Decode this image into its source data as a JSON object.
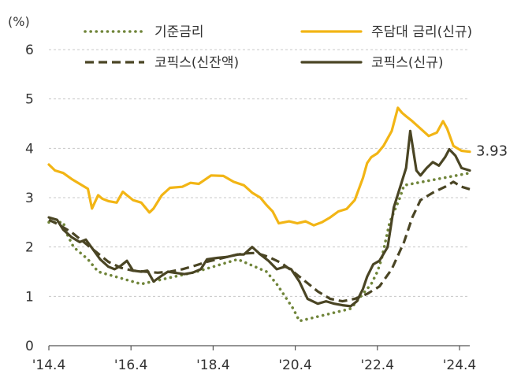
{
  "chart_data": {
    "type": "line",
    "ylabel": "(%)",
    "ylim": [
      0,
      6
    ],
    "yticks": [
      {
        "value": 0,
        "label": "0"
      },
      {
        "value": 1,
        "label": "1"
      },
      {
        "value": 2,
        "label": "2"
      },
      {
        "value": 3,
        "label": "3"
      },
      {
        "value": 4,
        "label": "4"
      },
      {
        "value": 5,
        "label": "5"
      },
      {
        "value": 6,
        "label": "6"
      }
    ],
    "xlim": [
      2014.25,
      2024.5
    ],
    "xticks": [
      {
        "value": 2014.25,
        "label": "'14.4"
      },
      {
        "value": 2016.25,
        "label": "'16.4"
      },
      {
        "value": 2018.25,
        "label": "'18.4"
      },
      {
        "value": 2020.25,
        "label": "'20.4"
      },
      {
        "value": 2022.25,
        "label": "'22.4"
      },
      {
        "value": 2024.25,
        "label": "'24.4"
      }
    ],
    "end_label": "3.93",
    "end_label_series": 1,
    "series": [
      {
        "name": "기준금리",
        "color": "#70853a",
        "style": "dotted",
        "x": [
          2014.25,
          2014.6,
          2014.7,
          2014.85,
          2015.2,
          2015.45,
          2016.5,
          2017.85,
          2018.85,
          2019.55,
          2019.8,
          2020.2,
          2020.35,
          2021.6,
          2021.85,
          2022.1,
          2022.25,
          2022.35,
          2022.55,
          2022.8,
          2022.9,
          2024.5
        ],
        "values": [
          2.5,
          2.5,
          2.25,
          2.0,
          1.75,
          1.5,
          1.25,
          1.5,
          1.75,
          1.5,
          1.25,
          0.75,
          0.5,
          0.75,
          1.0,
          1.25,
          1.5,
          1.75,
          2.5,
          3.0,
          3.25,
          3.5
        ]
      },
      {
        "name": "주담대 금리(신규)",
        "color": "#f2b515",
        "style": "solid",
        "x": [
          2014.25,
          2014.4,
          2014.6,
          2014.8,
          2015.0,
          2015.2,
          2015.3,
          2015.45,
          2015.55,
          2015.7,
          2015.9,
          2016.05,
          2016.15,
          2016.3,
          2016.5,
          2016.7,
          2016.8,
          2017.0,
          2017.2,
          2017.5,
          2017.7,
          2017.9,
          2018.2,
          2018.5,
          2018.75,
          2019.0,
          2019.2,
          2019.4,
          2019.55,
          2019.7,
          2019.85,
          2020.1,
          2020.3,
          2020.5,
          2020.7,
          2020.9,
          2021.1,
          2021.3,
          2021.5,
          2021.7,
          2021.9,
          2022.0,
          2022.1,
          2022.25,
          2022.4,
          2022.6,
          2022.75,
          2022.85,
          2022.95,
          2023.1,
          2023.3,
          2023.5,
          2023.7,
          2023.85,
          2023.95,
          2024.1,
          2024.3,
          2024.5
        ],
        "values": [
          3.67,
          3.55,
          3.5,
          3.38,
          3.28,
          3.18,
          2.78,
          3.05,
          2.98,
          2.93,
          2.9,
          3.12,
          3.05,
          2.95,
          2.9,
          2.7,
          2.78,
          3.05,
          3.2,
          3.22,
          3.3,
          3.28,
          3.45,
          3.44,
          3.32,
          3.25,
          3.1,
          3.0,
          2.85,
          2.72,
          2.48,
          2.52,
          2.48,
          2.52,
          2.44,
          2.5,
          2.6,
          2.72,
          2.77,
          2.95,
          3.4,
          3.7,
          3.82,
          3.9,
          4.05,
          4.35,
          4.82,
          4.72,
          4.65,
          4.55,
          4.4,
          4.25,
          4.32,
          4.55,
          4.4,
          4.05,
          3.95,
          3.93
        ]
      },
      {
        "name": "코픽스(신잔액)",
        "color": "#4a4524",
        "style": "dashed",
        "x": [
          2014.25,
          2014.5,
          2014.8,
          2015.1,
          2015.4,
          2015.7,
          2016.0,
          2016.3,
          2016.6,
          2016.9,
          2017.2,
          2017.5,
          2017.8,
          2018.1,
          2018.4,
          2018.7,
          2019.0,
          2019.3,
          2019.6,
          2019.9,
          2020.2,
          2020.5,
          2020.8,
          2021.1,
          2021.4,
          2021.7,
          2022.0,
          2022.3,
          2022.6,
          2022.9,
          2023.1,
          2023.3,
          2023.6,
          2023.9,
          2024.1,
          2024.3,
          2024.5
        ],
        "values": [
          2.55,
          2.45,
          2.3,
          2.1,
          1.9,
          1.7,
          1.58,
          1.52,
          1.5,
          1.48,
          1.5,
          1.55,
          1.62,
          1.7,
          1.76,
          1.82,
          1.87,
          1.88,
          1.8,
          1.68,
          1.5,
          1.3,
          1.1,
          0.95,
          0.9,
          0.95,
          1.05,
          1.2,
          1.55,
          2.1,
          2.6,
          2.95,
          3.1,
          3.22,
          3.32,
          3.22,
          3.17
        ]
      },
      {
        "name": "코픽스(신규)",
        "color": "#4a4524",
        "style": "solid",
        "x": [
          2014.25,
          2014.45,
          2014.6,
          2014.8,
          2015.0,
          2015.15,
          2015.3,
          2015.5,
          2015.7,
          2015.85,
          2016.0,
          2016.15,
          2016.3,
          2016.5,
          2016.65,
          2016.8,
          2017.0,
          2017.15,
          2017.3,
          2017.55,
          2017.75,
          2017.95,
          2018.1,
          2018.35,
          2018.6,
          2018.85,
          2019.0,
          2019.2,
          2019.4,
          2019.6,
          2019.8,
          2020.0,
          2020.15,
          2020.35,
          2020.55,
          2020.8,
          2021.0,
          2021.2,
          2021.4,
          2021.6,
          2021.75,
          2021.9,
          2022.0,
          2022.15,
          2022.3,
          2022.5,
          2022.65,
          2022.8,
          2022.95,
          2023.05,
          2023.2,
          2023.3,
          2023.45,
          2023.6,
          2023.75,
          2023.9,
          2024.0,
          2024.15,
          2024.3,
          2024.5
        ],
        "values": [
          2.6,
          2.55,
          2.35,
          2.2,
          2.1,
          2.15,
          1.98,
          1.75,
          1.6,
          1.55,
          1.62,
          1.72,
          1.52,
          1.5,
          1.52,
          1.3,
          1.42,
          1.5,
          1.48,
          1.45,
          1.48,
          1.55,
          1.75,
          1.78,
          1.8,
          1.85,
          1.85,
          2.0,
          1.85,
          1.72,
          1.55,
          1.6,
          1.55,
          1.3,
          0.95,
          0.85,
          0.9,
          0.85,
          0.82,
          0.8,
          0.9,
          1.15,
          1.4,
          1.65,
          1.72,
          2.0,
          2.8,
          3.2,
          3.6,
          4.35,
          3.55,
          3.45,
          3.6,
          3.72,
          3.65,
          3.82,
          3.98,
          3.85,
          3.6,
          3.55
        ]
      }
    ]
  }
}
